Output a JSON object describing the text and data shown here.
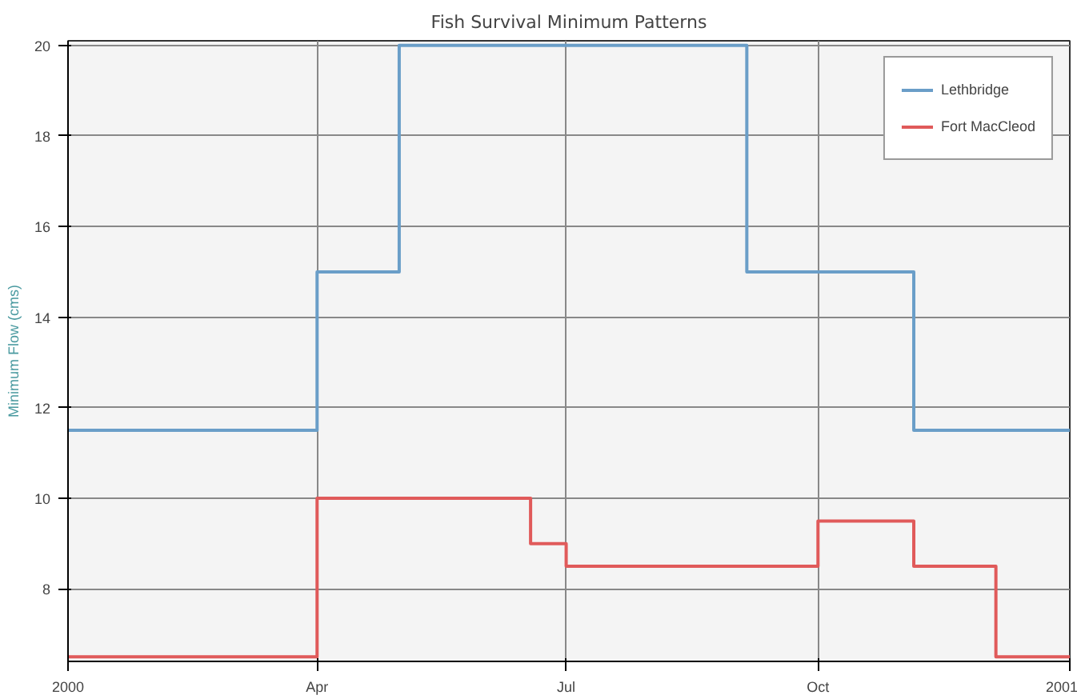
{
  "chart_data": {
    "type": "step",
    "title": "Fish Survival Minimum Patterns",
    "ylabel": "Minimum Flow (cms)",
    "xlim": [
      "2000-01-01",
      "2001-01-01"
    ],
    "xticks": [
      {
        "value": "2000-01-01",
        "label": "2000"
      },
      {
        "value": "2000-04-01",
        "label": "Apr"
      },
      {
        "value": "2000-07-01",
        "label": "Jul"
      },
      {
        "value": "2000-10-01",
        "label": "Oct"
      },
      {
        "value": "2001-01-01",
        "label": "2001"
      }
    ],
    "ylim": [
      6.4,
      20.1
    ],
    "yticks": [
      8,
      10,
      12,
      14,
      16,
      18,
      20
    ],
    "grid": true,
    "legend": "top right",
    "series": [
      {
        "name": "Lethbridge",
        "color": "#6a9ec8",
        "x": [
          "2000-01-01",
          "2000-04-01",
          "2000-05-01",
          "2000-09-05",
          "2000-11-05",
          "2001-01-01"
        ],
        "values": [
          11.5,
          15,
          20,
          15,
          11.5,
          11.5
        ]
      },
      {
        "name": "Fort MacCleod",
        "color": "#e05a5a",
        "x": [
          "2000-01-01",
          "2000-04-01",
          "2000-06-18",
          "2000-07-01",
          "2000-10-01",
          "2000-11-05",
          "2000-12-05",
          "2001-01-01"
        ],
        "values": [
          6.5,
          10,
          9,
          8.5,
          9.5,
          8.5,
          6.5,
          6.5
        ]
      }
    ]
  }
}
